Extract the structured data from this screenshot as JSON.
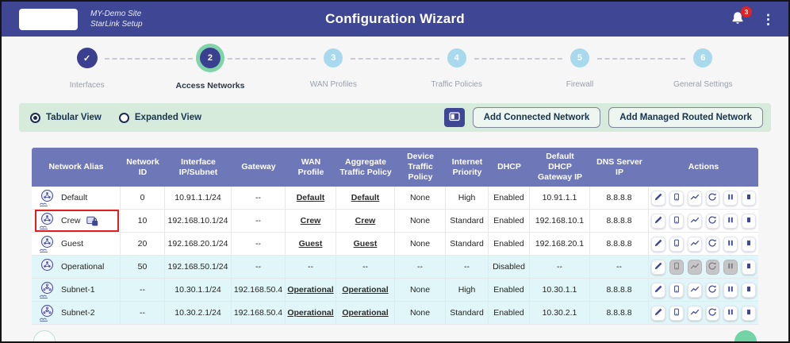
{
  "header": {
    "site_name": "MY-Demo Site",
    "site_subtitle": "StarLink Setup",
    "title": "Configuration Wizard",
    "notification_count": "3",
    "menu_icon": "kebab-menu-icon",
    "bell_icon": "bell-icon"
  },
  "stepper": {
    "steps": [
      {
        "label": "Interfaces",
        "state": "completed",
        "number": ""
      },
      {
        "label": "Access Networks",
        "state": "active",
        "number": "2"
      },
      {
        "label": "WAN Profiles",
        "state": "upcoming",
        "number": "3"
      },
      {
        "label": "Traffic Policies",
        "state": "upcoming",
        "number": "4"
      },
      {
        "label": "Firewall",
        "state": "upcoming",
        "number": "5"
      },
      {
        "label": "General Settings",
        "state": "upcoming",
        "number": "6"
      }
    ]
  },
  "toolbar": {
    "view_options": [
      {
        "label": "Tabular View",
        "selected": true
      },
      {
        "label": "Expanded View",
        "selected": false
      }
    ],
    "icon_button": "window-view-icon",
    "buttons": [
      {
        "label": "Add Connected Network"
      },
      {
        "label": "Add Managed Routed Network"
      }
    ]
  },
  "table": {
    "columns": [
      "Network Alias",
      "Network ID",
      "Interface IP/Subnet",
      "Gateway",
      "WAN Profile",
      "Aggregate Traffic Policy",
      "Device Traffic Policy",
      "Internet Priority",
      "DHCP",
      "Default DHCP Gateway IP",
      "DNS Server IP",
      "Actions"
    ],
    "actions": [
      "edit",
      "device",
      "stats",
      "refresh",
      "pause",
      "stop"
    ],
    "rows": [
      {
        "alias": "Default",
        "icon": "network-shared-icon",
        "locked": false,
        "highlighted": false,
        "tinted": false,
        "network_id": "0",
        "interface_ip": "10.91.1.1/24",
        "gateway": "--",
        "wan_profile": "Default",
        "aggregate_policy": "Default",
        "device_policy": "None",
        "internet_priority": "High",
        "dhcp": "Enabled",
        "dhcp_gateway": "10.91.1.1",
        "dns": "8.8.8.8",
        "disabled_actions": []
      },
      {
        "alias": "Crew",
        "icon": "network-shared-icon",
        "locked": true,
        "highlighted": true,
        "tinted": false,
        "network_id": "10",
        "interface_ip": "192.168.10.1/24",
        "gateway": "--",
        "wan_profile": "Crew",
        "aggregate_policy": "Crew",
        "device_policy": "None",
        "internet_priority": "Standard",
        "dhcp": "Enabled",
        "dhcp_gateway": "192.168.10.1",
        "dns": "8.8.8.8",
        "disabled_actions": []
      },
      {
        "alias": "Guest",
        "icon": "network-shared-icon",
        "locked": false,
        "highlighted": false,
        "tinted": false,
        "network_id": "20",
        "interface_ip": "192.168.20.1/24",
        "gateway": "--",
        "wan_profile": "Guest",
        "aggregate_policy": "Guest",
        "device_policy": "None",
        "internet_priority": "Standard",
        "dhcp": "Enabled",
        "dhcp_gateway": "192.168.20.1",
        "dns": "8.8.8.8",
        "disabled_actions": []
      },
      {
        "alias": "Operational",
        "icon": "network-icon",
        "locked": false,
        "highlighted": false,
        "tinted": true,
        "network_id": "50",
        "interface_ip": "192.168.50.1/24",
        "gateway": "--",
        "wan_profile": "--",
        "aggregate_policy": "--",
        "device_policy": "--",
        "internet_priority": "--",
        "dhcp": "Disabled",
        "dhcp_gateway": "--",
        "dns": "--",
        "disabled_actions": [
          "device",
          "stats",
          "refresh",
          "pause"
        ]
      },
      {
        "alias": "Subnet-1",
        "icon": "subnet-shared-icon",
        "locked": false,
        "highlighted": false,
        "tinted": true,
        "network_id": "--",
        "interface_ip": "10.30.1.1/24",
        "gateway": "192.168.50.4",
        "wan_profile": "Operational",
        "aggregate_policy": "Operational",
        "device_policy": "None",
        "internet_priority": "High",
        "dhcp": "Enabled",
        "dhcp_gateway": "10.30.1.1",
        "dns": "8.8.8.8",
        "disabled_actions": []
      },
      {
        "alias": "Subnet-2",
        "icon": "subnet-shared-icon",
        "locked": false,
        "highlighted": false,
        "tinted": true,
        "network_id": "--",
        "interface_ip": "10.30.2.1/24",
        "gateway": "192.168.50.4",
        "wan_profile": "Operational",
        "aggregate_policy": "Operational",
        "device_policy": "None",
        "internet_priority": "Standard",
        "dhcp": "Enabled",
        "dhcp_gateway": "10.30.2.1",
        "dns": "8.8.8.8",
        "disabled_actions": []
      }
    ]
  },
  "footer": {
    "back_label": "←",
    "next_label": "→"
  },
  "colors": {
    "header_bg": "#3f4795",
    "active_ring": "#7fd4a8",
    "upcoming_step": "#a9d9ec",
    "mint": "#d7ebdd",
    "table_header_bg": "#6e77b7",
    "row_tint": "#e1f6f8",
    "highlight_red": "#e02020",
    "next_green": "#72d4a4",
    "badge_red": "#e02424"
  }
}
